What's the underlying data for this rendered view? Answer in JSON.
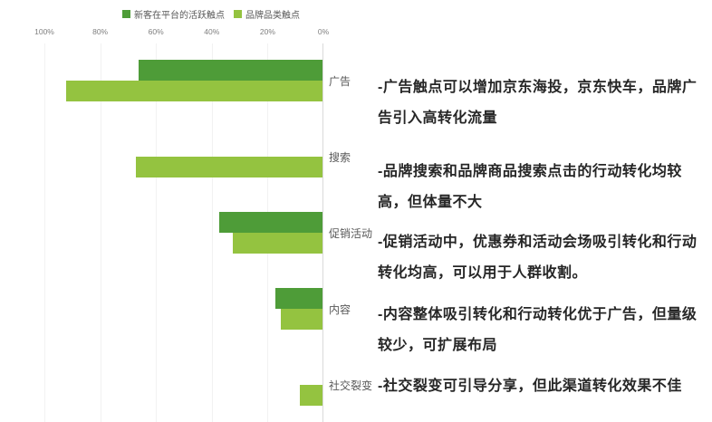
{
  "chart_data": {
    "type": "bar",
    "orientation": "horizontal",
    "title": "",
    "xlabel": "",
    "ylabel": "",
    "categories": [
      "广告",
      "搜索",
      "促销活动",
      "内容",
      "社交裂变"
    ],
    "series": [
      {
        "name": "新客在平台的活跃触点",
        "color": "#4e9c38",
        "values": [
          66,
          0,
          37,
          17,
          0
        ]
      },
      {
        "name": "品牌品类触点",
        "color": "#94c340",
        "values": [
          92,
          67,
          32,
          15,
          8
        ]
      }
    ],
    "x_axis": {
      "ticks": [
        "100%",
        "80%",
        "60%",
        "40%",
        "20%",
        "0%"
      ],
      "min": 0,
      "max": 100,
      "direction": "values-increase-leftward"
    },
    "legend_position": "top",
    "grid": true
  },
  "annotations": [
    {
      "text": "-广告触点可以增加京东海投，京东快车，品牌广告引入高转化流量"
    },
    {
      "text": "-品牌搜索和品牌商品搜索点击的行动转化均较高，但体量不大"
    },
    {
      "text": "-促销活动中，优惠券和活动会场吸引转化和行动转化均高，可以用于人群收割。"
    },
    {
      "text": "-内容整体吸引转化和行动转化优于广告，但量级较少，可扩展布局"
    },
    {
      "text": "-社交裂变可引导分享，但此渠道转化效果不佳"
    }
  ],
  "colors": {
    "series_dark_green": "#4e9c38",
    "series_light_green": "#94c340",
    "axis_line": "#d9d9d9",
    "gridline": "#f2f2f2",
    "tick_text": "#7f7f7f",
    "label_text": "#595959",
    "annotation_text": "#262626"
  }
}
